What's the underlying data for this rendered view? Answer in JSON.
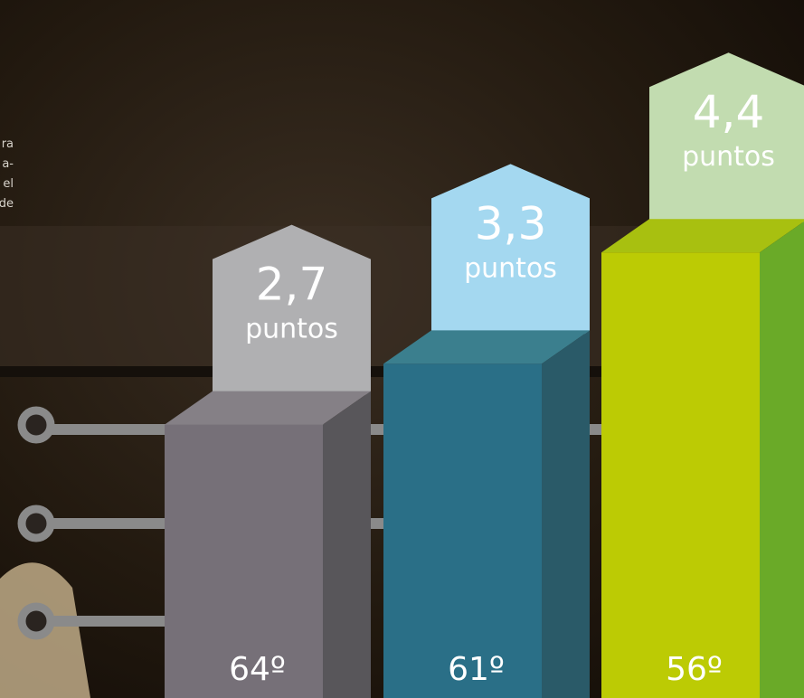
{
  "chart_data": {
    "type": "bar",
    "categories": [
      "64º",
      "61º",
      "56º"
    ],
    "values": [
      2.7,
      3.3,
      4.4
    ],
    "value_labels": [
      "2,7",
      "3,3",
      "4,4"
    ],
    "unit": "puntos",
    "colors": [
      "#767078",
      "#2a6f87",
      "#bccb04"
    ]
  },
  "side_text": [
    "ra",
    "a-",
    "el",
    "de"
  ]
}
